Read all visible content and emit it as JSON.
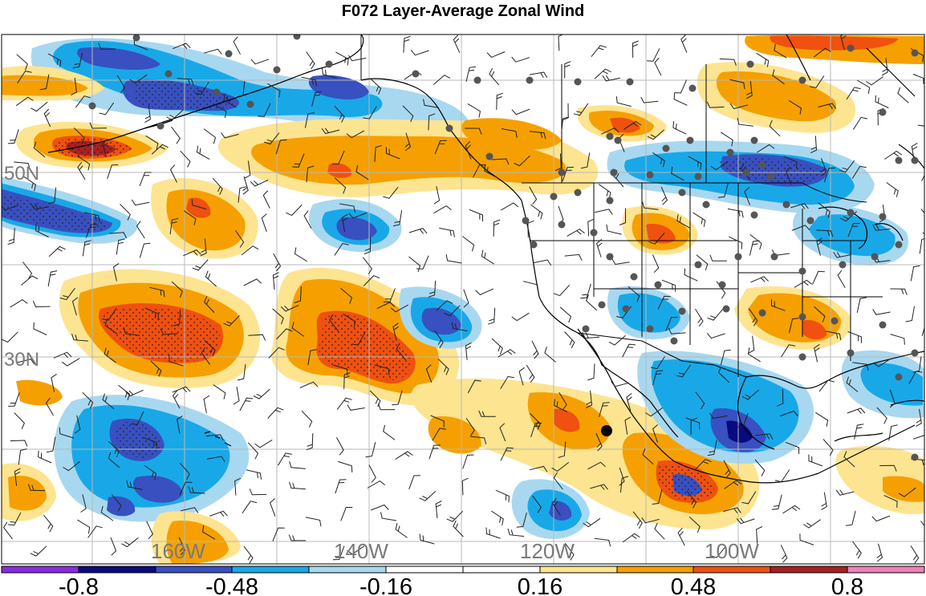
{
  "title": "F072 Layer-Average Zonal Wind",
  "map": {
    "lat_labels": [
      "50N",
      "30N"
    ],
    "lon_labels": [
      "160W",
      "140W",
      "120W",
      "100W"
    ],
    "colors": {
      "ocean_bg": "#ffffff",
      "coast": "#000000",
      "grid": "#b0b0b0",
      "station": "#555555",
      "marker": "#000000"
    }
  },
  "colorbar": {
    "colors": [
      "#8a2be2",
      "#0a0a80",
      "#3850c0",
      "#18a8e8",
      "#a8d8f0",
      "#ffffff",
      "#ffffff",
      "#fde490",
      "#f5a000",
      "#f05010",
      "#a82020",
      "#f080b8"
    ],
    "tick_labels": [
      "-0.8",
      "-0.48",
      "-0.16",
      "0.16",
      "0.48",
      "0.8"
    ]
  }
}
